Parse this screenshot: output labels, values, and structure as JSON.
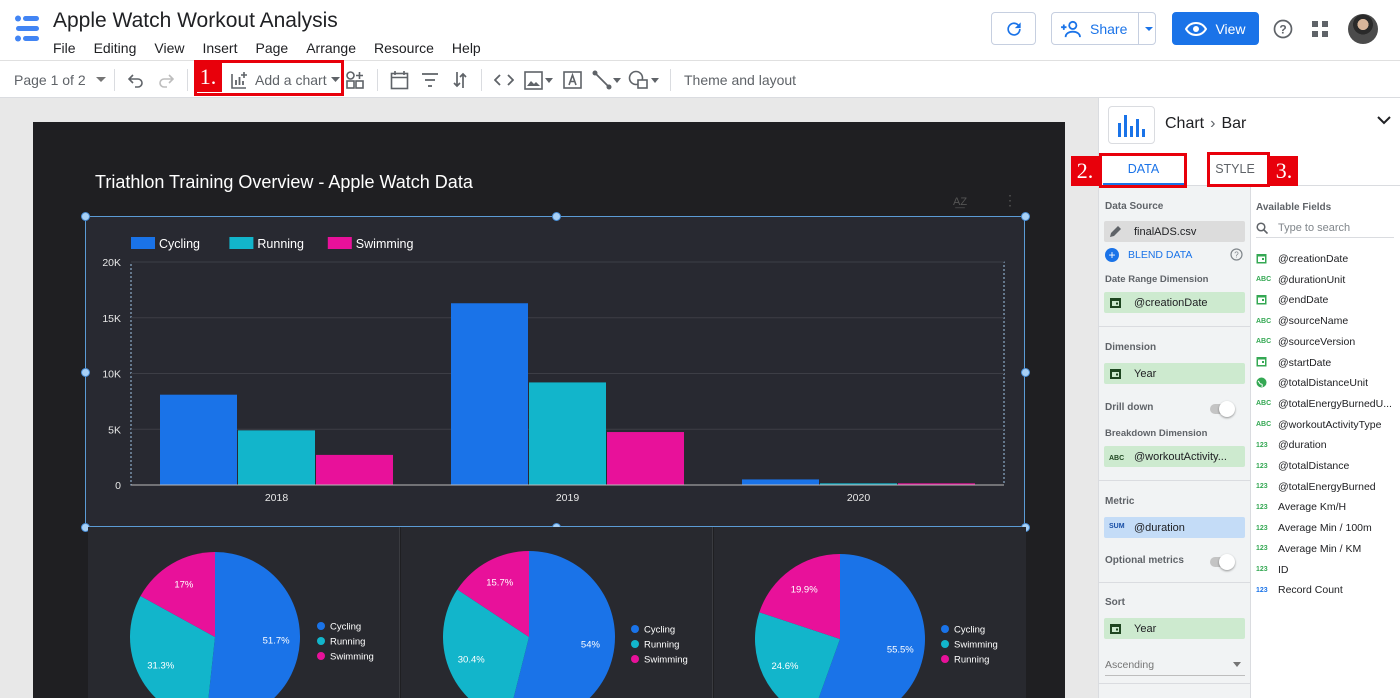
{
  "app": {
    "title": "Apple Watch Workout Analysis",
    "menu": [
      "File",
      "Editing",
      "View",
      "Insert",
      "Page",
      "Arrange",
      "Resource",
      "Help"
    ],
    "share_label": "Share",
    "view_label": "View"
  },
  "toolbar": {
    "page_label": "Page 1 of 2",
    "add_chart_label": "Add a chart",
    "theme_label": "Theme and layout"
  },
  "annotations": {
    "one": "1.",
    "two": "2.",
    "three": "3."
  },
  "report": {
    "title": "Triathlon Training Overview - Apple Watch Data"
  },
  "chart_data": [
    {
      "type": "bar",
      "categories": [
        "2018",
        "2019",
        "2020"
      ],
      "series": [
        {
          "name": "Cycling",
          "color": "#1a73e8",
          "values": [
            8100,
            16300,
            500
          ]
        },
        {
          "name": "Running",
          "color": "#12b5cb",
          "values": [
            4900,
            9200,
            150
          ]
        },
        {
          "name": "Swimming",
          "color": "#e8119a",
          "values": [
            2700,
            4750,
            150
          ]
        }
      ],
      "ylim": [
        0,
        20000
      ],
      "yticks": [
        "0",
        "5K",
        "10K",
        "15K",
        "20K"
      ],
      "legend": "top-left",
      "grid": true
    },
    {
      "type": "pie",
      "slices": [
        {
          "name": "Cycling",
          "value": 51.7,
          "label": "51.7%",
          "color": "#1a73e8"
        },
        {
          "name": "Running",
          "value": 31.3,
          "label": "31.3%",
          "color": "#12b5cb"
        },
        {
          "name": "Swimming",
          "value": 17.0,
          "label": "17%",
          "color": "#e8119a"
        }
      ],
      "legend": "right"
    },
    {
      "type": "pie",
      "slices": [
        {
          "name": "Cycling",
          "value": 54.0,
          "label": "54%",
          "color": "#1a73e8"
        },
        {
          "name": "Running",
          "value": 30.4,
          "label": "30.4%",
          "color": "#12b5cb"
        },
        {
          "name": "Swimming",
          "value": 15.7,
          "label": "15.7%",
          "color": "#e8119a"
        }
      ],
      "legend": "right"
    },
    {
      "type": "pie",
      "slices": [
        {
          "name": "Cycling",
          "value": 55.5,
          "label": "55.5%",
          "color": "#1a73e8"
        },
        {
          "name": "Swimming",
          "value": 24.6,
          "label": "24.6%",
          "color": "#12b5cb"
        },
        {
          "name": "Running",
          "value": 19.9,
          "label": "19.9%",
          "color": "#e8119a"
        }
      ],
      "legend": "right"
    }
  ],
  "panel": {
    "crumb_root": "Chart",
    "crumb_leaf": "Bar",
    "tab_data": "DATA",
    "tab_style": "STYLE",
    "data_source_label": "Data Source",
    "data_source": "finalADS.csv",
    "blend_label": "BLEND DATA",
    "date_range_label": "Date Range Dimension",
    "date_range_value": "@creationDate",
    "dimension_label": "Dimension",
    "dimension_value": "Year",
    "drill_down_label": "Drill down",
    "breakdown_label": "Breakdown Dimension",
    "breakdown_value": "@workoutActivity...",
    "metric_label": "Metric",
    "metric_value": "@duration",
    "metric_agg": "SUM",
    "optional_metrics_label": "Optional metrics",
    "sort_label": "Sort",
    "sort_value": "Year",
    "sort_order": "Ascending",
    "available_fields_label": "Available Fields",
    "search_placeholder": "Type to search",
    "fields": [
      {
        "type": "date",
        "name": "@creationDate"
      },
      {
        "type": "text",
        "name": "@durationUnit"
      },
      {
        "type": "date",
        "name": "@endDate"
      },
      {
        "type": "text",
        "name": "@sourceName"
      },
      {
        "type": "text",
        "name": "@sourceVersion"
      },
      {
        "type": "date",
        "name": "@startDate"
      },
      {
        "type": "geo",
        "name": "@totalDistanceUnit"
      },
      {
        "type": "text",
        "name": "@totalEnergyBurnedU..."
      },
      {
        "type": "text",
        "name": "@workoutActivityType"
      },
      {
        "type": "num",
        "name": "@duration"
      },
      {
        "type": "num",
        "name": "@totalDistance"
      },
      {
        "type": "num",
        "name": "@totalEnergyBurned"
      },
      {
        "type": "num",
        "name": "Average Km/H"
      },
      {
        "type": "num",
        "name": "Average Min / 100m"
      },
      {
        "type": "num",
        "name": "Average Min / KM"
      },
      {
        "type": "num",
        "name": "ID"
      },
      {
        "type": "count",
        "name": "Record Count"
      }
    ]
  }
}
